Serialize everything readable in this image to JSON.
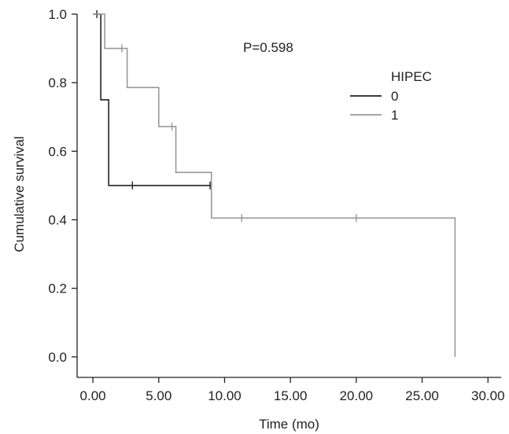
{
  "chart_data": {
    "type": "line",
    "subtype": "kaplan-meier-step",
    "title": "",
    "xlabel": "Time (mo)",
    "ylabel": "Cumulative survival",
    "xlim": [
      -1.2,
      31.0
    ],
    "ylim": [
      -0.06,
      1.0
    ],
    "x_ticks": [
      0,
      5,
      10,
      15,
      20,
      25,
      30
    ],
    "x_tick_labels": [
      "0.00",
      "5.00",
      "10.00",
      "15.00",
      "20.00",
      "25.00",
      "30.00"
    ],
    "y_ticks": [
      0.0,
      0.2,
      0.4,
      0.6,
      0.8,
      1.0
    ],
    "y_tick_labels": [
      "0.0",
      "0.2",
      "0.4",
      "0.6",
      "0.8",
      "1.0"
    ],
    "grid": false,
    "annotation": "P=0.598",
    "legend": {
      "title": "HIPEC",
      "placement": "top-right"
    },
    "series": [
      {
        "name": "0",
        "color": "#222222",
        "steps": [
          [
            0,
            1.0
          ],
          [
            0.6,
            0.75
          ],
          [
            1.2,
            0.5
          ],
          [
            9.0,
            0.5
          ]
        ],
        "censored": [
          [
            0.3,
            1.0
          ],
          [
            3.0,
            0.5
          ],
          [
            8.9,
            0.5
          ]
        ]
      },
      {
        "name": "1",
        "color": "#999999",
        "steps": [
          [
            0,
            1.0
          ],
          [
            0.9,
            0.9
          ],
          [
            2.6,
            0.786
          ],
          [
            5.0,
            0.672
          ],
          [
            6.3,
            0.538
          ],
          [
            9.0,
            0.405
          ],
          [
            27.5,
            0.405
          ],
          [
            27.5,
            0.0
          ]
        ],
        "censored": [
          [
            2.2,
            0.9
          ],
          [
            6.0,
            0.672
          ],
          [
            11.3,
            0.405
          ],
          [
            20.0,
            0.405
          ]
        ]
      }
    ]
  }
}
